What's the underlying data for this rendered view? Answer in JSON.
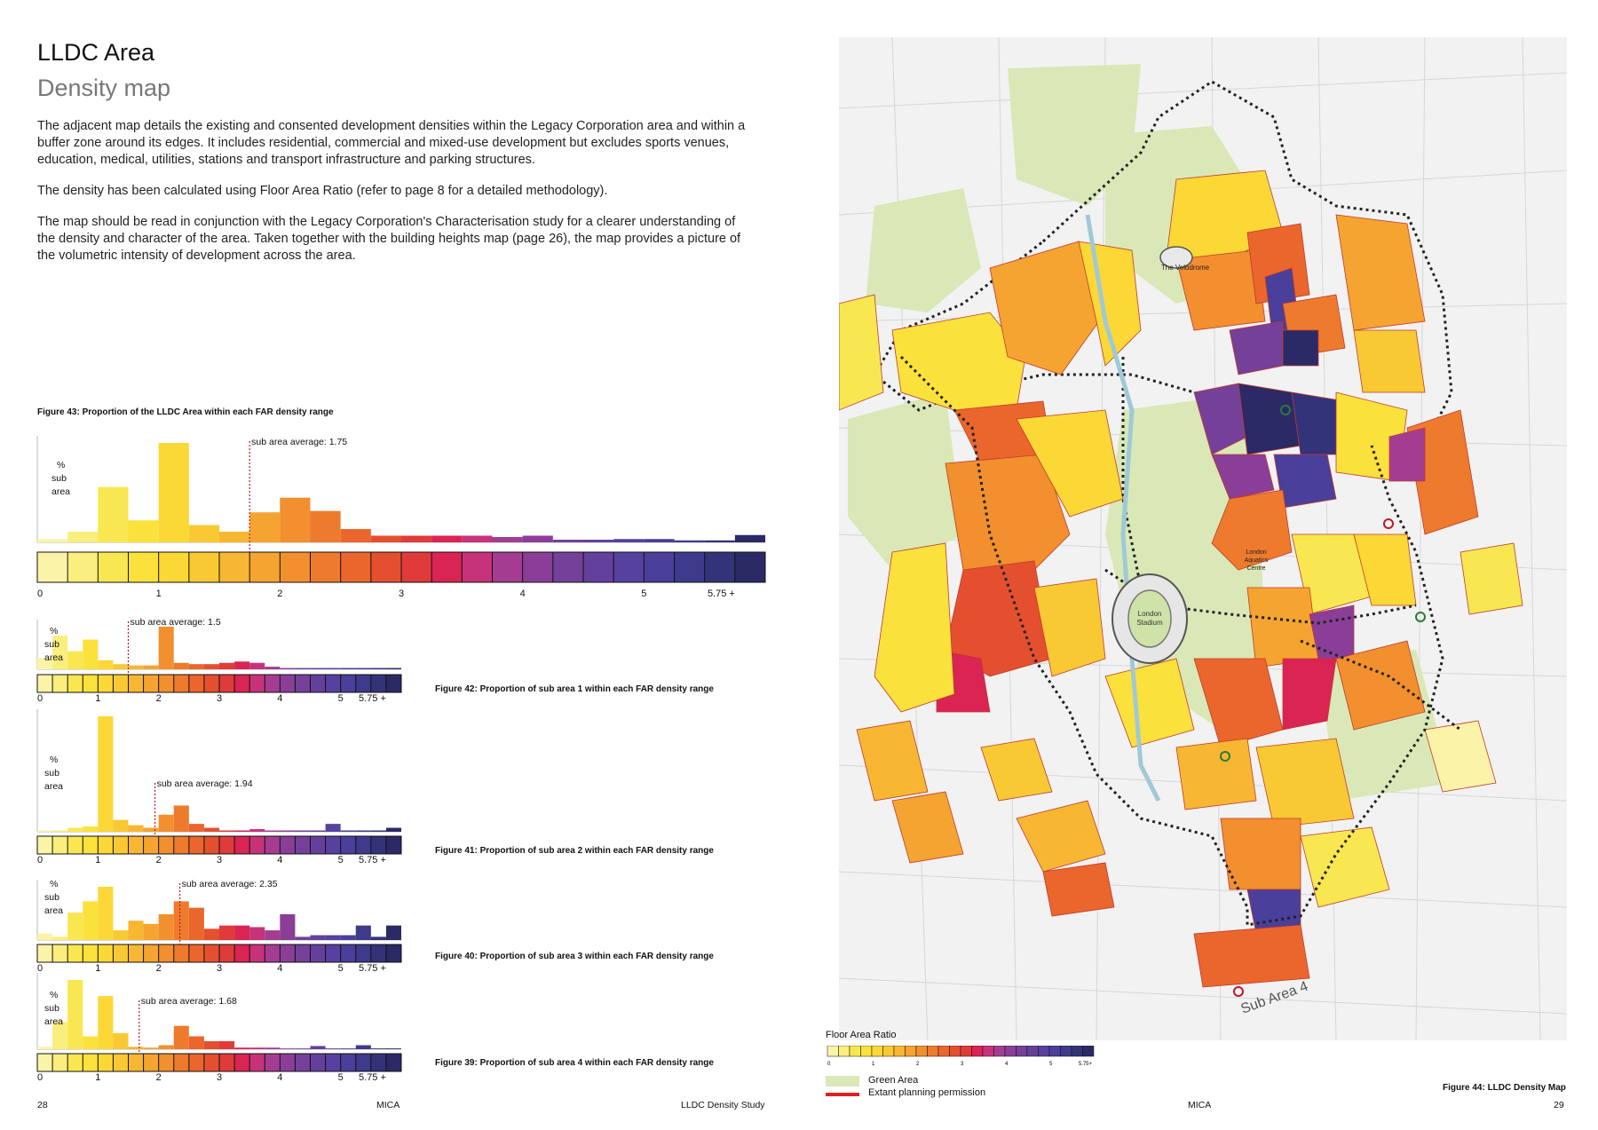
{
  "header": {
    "title": "LLDC Area",
    "subtitle": "Density map"
  },
  "body": {
    "p1": "The adjacent map details the existing and consented development densities within the Legacy Corporation area and within a buffer zone around its edges. It includes residential, commercial and mixed-use development but excludes sports venues, education, medical, utilities, stations and transport infrastructure and parking structures.",
    "p2": "The density has been calculated using Floor Area Ratio (refer to page 8 for a detailed methodology).",
    "p3": "The map should be read in conjunction with the Legacy Corporation's Characterisation study for a clearer understanding of the density and character of the area. Taken together with the building heights map (page 26), the map provides a picture of the volumetric intensity of development across the area."
  },
  "colors": {
    "scale": [
      "#fbf3a8",
      "#faee7e",
      "#f9e751",
      "#fbe13c",
      "#fbd836",
      "#f9c934",
      "#f7b733",
      "#f5a431",
      "#f28f2f",
      "#ee7b2d",
      "#ea662d",
      "#e4502f",
      "#e03b3b",
      "#d92454",
      "#c7337a",
      "#a43d92",
      "#8a3e98",
      "#74409a",
      "#64409d",
      "#5641a0",
      "#4a3f9a",
      "#3e3a8c",
      "#33337a",
      "#2b2a66"
    ],
    "green_area": "#d9e8b6",
    "planning_permission": "#e31e24",
    "avg_line": "#c0152b"
  },
  "chart_data": [
    {
      "type": "bar",
      "id": "fig43",
      "title": "Figure 43:  Proportion of the LLDC Area within each FAR density range",
      "ylabel": "% sub area",
      "average_label": "sub area average: 1.75",
      "average": 1.75,
      "ticks": [
        "0",
        "1",
        "2",
        "3",
        "4",
        "5",
        "5.75 +"
      ],
      "tick_values": [
        0,
        1,
        2,
        3,
        4,
        5,
        5.75
      ],
      "values": [
        0.5,
        1.6,
        8.3,
        3.3,
        14.9,
        2.6,
        1.6,
        4.5,
        6.7,
        4.7,
        2.0,
        1.0,
        1.0,
        1.0,
        1.0,
        0.8,
        1.0,
        0.4,
        0.4,
        0.5,
        0.5,
        0.3,
        0.3,
        1.1
      ]
    },
    {
      "type": "bar",
      "id": "fig42",
      "title": "Figure 42:  Proportion of sub area 1 within each FAR density range",
      "ylabel": "% sub area",
      "average_label": "sub area average: 1.5",
      "average": 1.5,
      "ticks": [
        "0",
        "1",
        "2",
        "3",
        "4",
        "5",
        "5.75 +"
      ],
      "tick_values": [
        0,
        1,
        2,
        3,
        4,
        5,
        5.75
      ],
      "values": [
        0.9,
        2.6,
        1.4,
        2.3,
        0.7,
        0.4,
        0.3,
        0.3,
        3.3,
        0.5,
        0.4,
        0.4,
        0.5,
        0.6,
        0.5,
        0.2,
        0.1,
        0.1,
        0.1,
        0.1,
        0.1,
        0.1,
        0.1,
        0.1
      ]
    },
    {
      "type": "bar",
      "id": "fig41",
      "title": "Figure 41:  Proportion of sub area 2 within each FAR density range",
      "ylabel": "% sub area",
      "average_label": "sub area average: 1.94",
      "average": 1.94,
      "ticks": [
        "0",
        "1",
        "2",
        "3",
        "4",
        "5",
        "5.75 +"
      ],
      "tick_values": [
        0,
        1,
        2,
        3,
        4,
        5,
        5.75
      ],
      "values": [
        0.1,
        0.1,
        0.3,
        0.4,
        8.8,
        0.9,
        0.5,
        0.3,
        1.3,
        2.0,
        0.6,
        0.3,
        0.1,
        0.1,
        0.2,
        0.1,
        0.1,
        0.1,
        0.1,
        0.6,
        0.1,
        0.1,
        0.1,
        0.3
      ]
    },
    {
      "type": "bar",
      "id": "fig40",
      "title": "Figure 40:  Proportion of sub area 3 within each FAR density range",
      "ylabel": "% sub area",
      "average_label": "sub area average: 2.35",
      "average": 2.35,
      "ticks": [
        "0",
        "1",
        "2",
        "3",
        "4",
        "5",
        "5.75 +"
      ],
      "tick_values": [
        0,
        1,
        2,
        3,
        4,
        5,
        5.75
      ],
      "values": [
        0.4,
        0.2,
        1.7,
        2.4,
        3.3,
        0.6,
        1.2,
        1.0,
        1.6,
        2.4,
        2.0,
        0.7,
        0.9,
        0.9,
        0.8,
        0.6,
        1.6,
        0.2,
        0.3,
        0.3,
        0.3,
        0.9,
        0.2,
        0.9
      ]
    },
    {
      "type": "bar",
      "id": "fig39",
      "title": "Figure 39:  Proportion of sub area 4 within each FAR density range",
      "ylabel": "% sub area",
      "average_label": "sub area average: 1.68",
      "average": 1.68,
      "ticks": [
        "0",
        "1",
        "2",
        "3",
        "4",
        "5",
        "5.75 +"
      ],
      "tick_values": [
        0,
        1,
        2,
        3,
        4,
        5,
        5.75
      ],
      "values": [
        0.3,
        3.4,
        8.6,
        1.6,
        6.6,
        2.0,
        0.3,
        0.2,
        0.5,
        2.9,
        1.6,
        1.0,
        1.0,
        0.2,
        0.2,
        0.2,
        0.1,
        0.1,
        0.4,
        0.1,
        0.1,
        0.5,
        0.1,
        0.1
      ]
    }
  ],
  "map": {
    "caption": "Figure 44:  LLDC Density Map",
    "labels": {
      "velodrome": "The Velodrome",
      "aquatics_1": "London",
      "aquatics_2": "Aquatics",
      "aquatics_3": "Centre",
      "stadium_1": "London",
      "stadium_2": "Stadium",
      "subarea": "Sub Area 4"
    },
    "legend": {
      "title": "Floor Area Ratio",
      "ticks": [
        "0",
        "1",
        "2",
        "3",
        "4",
        "5",
        "5.75+"
      ],
      "green_area": "Green Area",
      "planning": "Extant planning permission"
    }
  },
  "footer": {
    "left_page": "28",
    "left_center": "MICA",
    "left_right": "LLDC Density Study",
    "right_center": "MICA",
    "right_page": "29"
  }
}
